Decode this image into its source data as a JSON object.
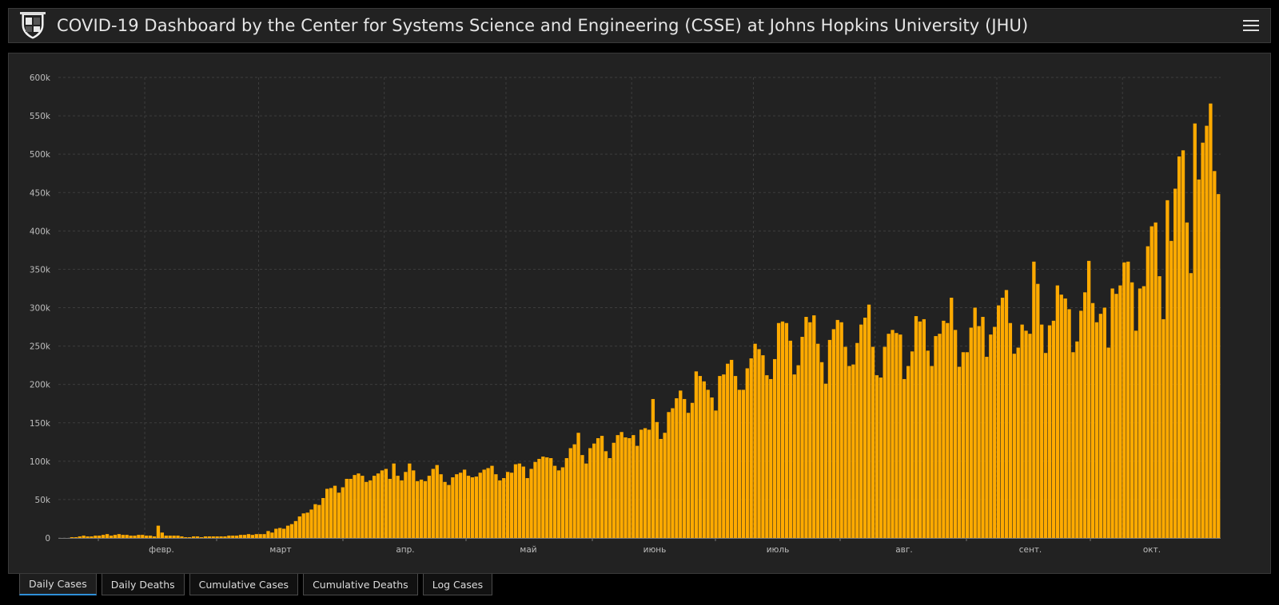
{
  "header": {
    "title": "COVID-19 Dashboard by the Center for Systems Science and Engineering (CSSE) at Johns Hopkins University (JHU)"
  },
  "tabs": [
    {
      "label": "Daily Cases",
      "active": true
    },
    {
      "label": "Daily Deaths",
      "active": false
    },
    {
      "label": "Cumulative Cases",
      "active": false
    },
    {
      "label": "Cumulative Deaths",
      "active": false
    },
    {
      "label": "Log Cases",
      "active": false
    }
  ],
  "colors": {
    "bar": "#ffaa00",
    "background": "#222222",
    "grid": "#3a3a3a",
    "active_tab": "#2f8fd8"
  },
  "chart_data": {
    "type": "bar",
    "title": "",
    "xlabel": "",
    "ylabel": "",
    "ylim": [
      0,
      600000
    ],
    "grid": true,
    "yticks": [
      {
        "value": 0,
        "label": "0"
      },
      {
        "value": 50000,
        "label": "50k"
      },
      {
        "value": 100000,
        "label": "100k"
      },
      {
        "value": 150000,
        "label": "150k"
      },
      {
        "value": 200000,
        "label": "200k"
      },
      {
        "value": 250000,
        "label": "250k"
      },
      {
        "value": 300000,
        "label": "300k"
      },
      {
        "value": 350000,
        "label": "350k"
      },
      {
        "value": 400000,
        "label": "400k"
      },
      {
        "value": 450000,
        "label": "450k"
      },
      {
        "value": 500000,
        "label": "500k"
      },
      {
        "value": 550000,
        "label": "550k"
      },
      {
        "value": 600000,
        "label": "600k"
      }
    ],
    "xticks": [
      "февр.",
      "март",
      "апр.",
      "май",
      "июнь",
      "июль",
      "авг.",
      "сент.",
      "окт."
    ],
    "series": [
      {
        "values": [
          0,
          0,
          0,
          1000,
          1000,
          2000,
          3000,
          2000,
          2000,
          3000,
          3000,
          4000,
          5000,
          3000,
          4000,
          5000,
          4000,
          4000,
          3000,
          3000,
          4000,
          4000,
          3000,
          3000,
          2000,
          16000,
          7000,
          3000,
          3000,
          3000,
          3000,
          2000,
          1000,
          1000,
          2000,
          2000,
          1000,
          2000,
          2000,
          2000,
          2000,
          2000,
          2000,
          3000,
          3000,
          3000,
          4000,
          4000,
          5000,
          4000,
          5000,
          5000,
          5000,
          9000,
          7000,
          12000,
          13000,
          12000,
          16000,
          18000,
          22000,
          28000,
          32000,
          33000,
          37000,
          44000,
          43000,
          52000,
          64000,
          65000,
          68000,
          59000,
          66000,
          77000,
          77000,
          82000,
          84000,
          81000,
          73000,
          75000,
          81000,
          84000,
          88000,
          90000,
          77000,
          97000,
          81000,
          75000,
          86000,
          97000,
          88000,
          74000,
          76000,
          74000,
          81000,
          90000,
          95000,
          83000,
          73000,
          69000,
          79000,
          83000,
          85000,
          89000,
          81000,
          79000,
          80000,
          85000,
          89000,
          91000,
          94000,
          83000,
          75000,
          78000,
          86000,
          85000,
          96000,
          97000,
          93000,
          78000,
          90000,
          99000,
          103000,
          106000,
          105000,
          104000,
          94000,
          88000,
          92000,
          104000,
          117000,
          122000,
          137000,
          108000,
          97000,
          117000,
          123000,
          130000,
          133000,
          113000,
          104000,
          124000,
          134000,
          138000,
          131000,
          130000,
          134000,
          120000,
          141000,
          143000,
          141000,
          181000,
          151000,
          129000,
          137000,
          164000,
          169000,
          182000,
          192000,
          181000,
          163000,
          176000,
          217000,
          211000,
          204000,
          193000,
          183000,
          166000,
          211000,
          213000,
          227000,
          232000,
          211000,
          193000,
          193000,
          221000,
          234000,
          253000,
          246000,
          238000,
          212000,
          207000,
          233000,
          280000,
          282000,
          280000,
          257000,
          213000,
          225000,
          262000,
          288000,
          281000,
          290000,
          253000,
          229000,
          201000,
          258000,
          272000,
          284000,
          281000,
          249000,
          224000,
          226000,
          254000,
          278000,
          287000,
          304000,
          249000,
          212000,
          209000,
          249000,
          266000,
          271000,
          267000,
          265000,
          207000,
          224000,
          243000,
          289000,
          282000,
          285000,
          244000,
          224000,
          263000,
          266000,
          283000,
          280000,
          313000,
          271000,
          223000,
          242000,
          242000,
          274000,
          300000,
          276000,
          288000,
          236000,
          265000,
          275000,
          303000,
          313000,
          323000,
          280000,
          240000,
          248000,
          278000,
          270000,
          266000,
          360000,
          331000,
          278000,
          241000,
          277000,
          283000,
          329000,
          317000,
          312000,
          298000,
          242000,
          256000,
          296000,
          320000,
          361000,
          306000,
          281000,
          292000,
          300000,
          248000,
          325000,
          318000,
          329000,
          359000,
          360000,
          333000,
          270000,
          325000,
          328000,
          380000,
          406000,
          411000,
          341000,
          285000,
          440000,
          387000,
          455000,
          497000,
          505000,
          411000,
          345000,
          540000,
          467000,
          515000,
          537000,
          566000,
          478000,
          448000
        ]
      }
    ]
  }
}
